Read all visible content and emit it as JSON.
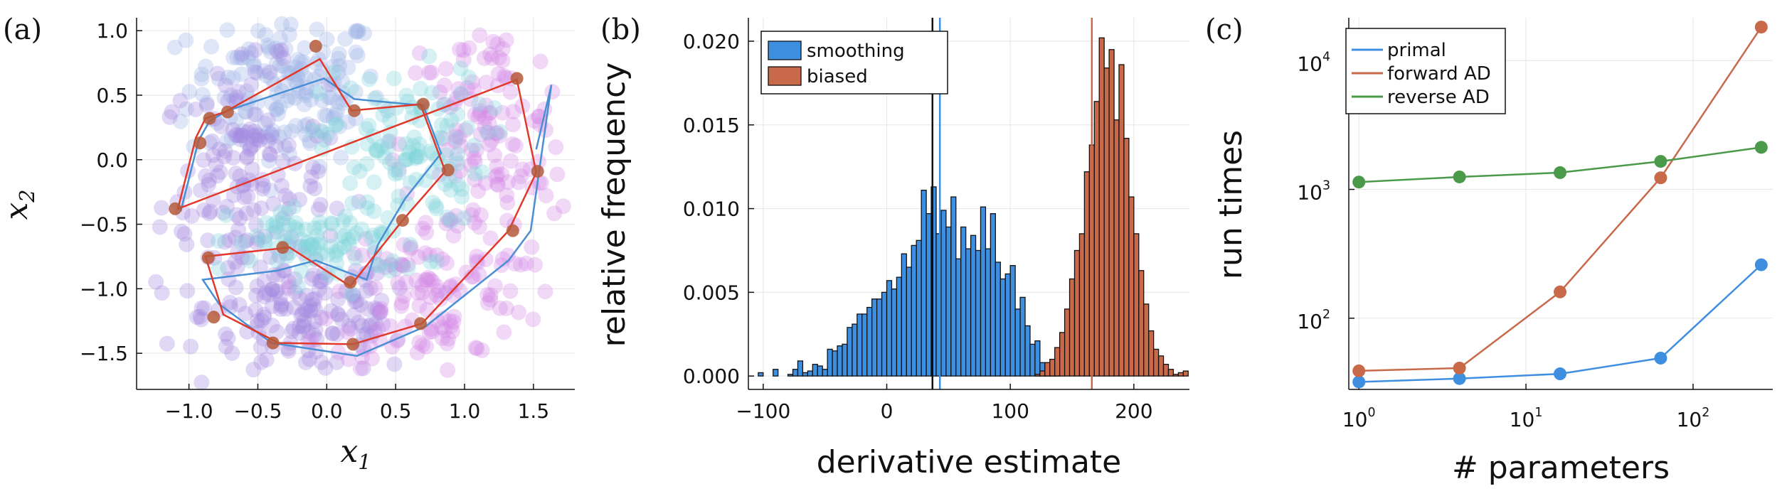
{
  "chart_data": [
    {
      "panel_label": "(a)",
      "type": "scatter",
      "xlabel": "x",
      "xlabel_sub": "1",
      "ylabel": "x",
      "ylabel_sub": "2",
      "xlim": [
        -1.38,
        1.8
      ],
      "ylim": [
        -1.78,
        1.1
      ],
      "xticks": [
        -1.0,
        -0.5,
        0.0,
        0.5,
        1.0,
        1.5
      ],
      "xtick_labels": [
        "−1.0",
        "−0.5",
        "0.0",
        "0.5",
        "1.0",
        "1.5"
      ],
      "yticks": [
        1.0,
        0.5,
        0.0,
        -0.5,
        -1.0,
        -1.5
      ],
      "ytick_labels": [
        "1.0",
        "0.5",
        "0.0",
        "−0.5",
        "−1.0",
        "−1.5"
      ],
      "grid": true,
      "colors": {
        "cloud_blue": "#9fb3e6",
        "cloud_purple": "#a58ae0",
        "cloud_magenta": "#d58ae6",
        "cloud_cyan": "#7fd3dc",
        "red_path": "#e0392b",
        "blue_path": "#4a8fd4",
        "markers": "#b5593a"
      },
      "red_path": [
        [
          -1.08,
          -0.38
        ],
        [
          -0.95,
          0.17
        ],
        [
          -0.88,
          0.32
        ],
        [
          -0.74,
          0.37
        ],
        [
          -0.05,
          0.78
        ],
        [
          0.18,
          0.38
        ],
        [
          0.68,
          0.43
        ],
        [
          0.86,
          -0.09
        ],
        [
          0.55,
          -0.47
        ],
        [
          0.17,
          -0.98
        ],
        [
          -0.27,
          -0.68
        ],
        [
          -0.88,
          -0.75
        ],
        [
          -0.75,
          -1.2
        ],
        [
          -0.35,
          -1.42
        ],
        [
          0.19,
          -1.43
        ],
        [
          0.69,
          -1.27
        ],
        [
          1.32,
          -0.55
        ],
        [
          1.52,
          -0.1
        ],
        [
          1.38,
          0.62
        ]
      ],
      "red_path_closed": true,
      "blue_path": [
        [
          -1.06,
          -0.4
        ],
        [
          -0.93,
          0.15
        ],
        [
          -0.85,
          0.3
        ],
        [
          -0.72,
          0.38
        ],
        [
          -0.02,
          0.63
        ],
        [
          0.2,
          0.47
        ],
        [
          0.7,
          0.42
        ],
        [
          0.83,
          0.05
        ],
        [
          0.57,
          -0.3
        ],
        [
          0.37,
          -0.66
        ],
        [
          0.29,
          -0.93
        ],
        [
          -0.08,
          -0.78
        ],
        [
          -0.36,
          -0.86
        ],
        [
          -0.9,
          -0.93
        ],
        [
          -0.78,
          -1.12
        ],
        [
          -0.4,
          -1.42
        ],
        [
          0.22,
          -1.52
        ],
        [
          0.72,
          -1.29
        ],
        [
          1.32,
          -0.78
        ],
        [
          1.48,
          -0.55
        ],
        [
          1.63,
          0.58
        ],
        [
          1.52,
          0.08
        ]
      ],
      "markers": [
        [
          -0.08,
          0.88
        ],
        [
          -0.85,
          0.32
        ],
        [
          -0.72,
          0.37
        ],
        [
          0.2,
          0.38
        ],
        [
          0.7,
          0.43
        ],
        [
          -0.92,
          0.13
        ],
        [
          0.88,
          -0.08
        ],
        [
          1.38,
          0.63
        ],
        [
          1.53,
          -0.09
        ],
        [
          -1.1,
          -0.38
        ],
        [
          0.55,
          -0.47
        ],
        [
          1.35,
          -0.55
        ],
        [
          -0.32,
          -0.68
        ],
        [
          0.17,
          -0.95
        ],
        [
          -0.86,
          -0.76
        ],
        [
          -0.82,
          -1.22
        ],
        [
          -0.39,
          -1.42
        ],
        [
          0.19,
          -1.43
        ],
        [
          0.68,
          -1.27
        ]
      ]
    },
    {
      "panel_label": "(b)",
      "type": "histogram",
      "xlabel": "derivative estimate",
      "ylabel": "relative frequency",
      "xlim": [
        -112,
        245
      ],
      "ylim": [
        -0.0008,
        0.0214
      ],
      "xticks": [
        -100,
        0,
        100,
        200
      ],
      "xtick_labels": [
        "−100",
        "0",
        "100",
        "200"
      ],
      "yticks": [
        0.0,
        0.005,
        0.01,
        0.015,
        0.02
      ],
      "ytick_labels": [
        "0.000",
        "0.005",
        "0.010",
        "0.015",
        "0.020"
      ],
      "grid": true,
      "legend_position": "top-left",
      "bin_width": 4,
      "series": [
        {
          "name": "smoothing",
          "color": "#3f8fe0",
          "bin_start": -104,
          "values": [
            0.0002,
            0,
            0,
            0.0004,
            0,
            0,
            0.0001,
            0.0004,
            0.0009,
            0.0002,
            0.0003,
            0.0007,
            0.0006,
            0.0004,
            0.0016,
            0.0015,
            0.0018,
            0.0019,
            0.0029,
            0.0031,
            0.0037,
            0.0037,
            0.0041,
            0.0046,
            0.0046,
            0.005,
            0.0057,
            0.0052,
            0.0059,
            0.0073,
            0.0065,
            0.0078,
            0.0081,
            0.0111,
            0.0097,
            0.0113,
            0.0085,
            0.0099,
            0.0089,
            0.0107,
            0.007,
            0.0089,
            0.0076,
            0.0084,
            0.0075,
            0.0101,
            0.0076,
            0.0097,
            0.0068,
            0.0058,
            0.0061,
            0.0066,
            0.004,
            0.0047,
            0.003,
            0.0019,
            0.0021,
            0.0008,
            0.0002,
            0.0002,
            0.0001
          ],
          "mean_line": 43
        },
        {
          "name": "biased",
          "color": "#c8694a",
          "bin_start": 120,
          "values": [
            0.0001,
            0.0003,
            0.0008,
            0.001,
            0.0017,
            0.0026,
            0.004,
            0.0058,
            0.0075,
            0.0085,
            0.0122,
            0.0138,
            0.0164,
            0.0202,
            0.0184,
            0.0195,
            0.0153,
            0.0186,
            0.0142,
            0.0107,
            0.0085,
            0.0063,
            0.0043,
            0.0027,
            0.0016,
            0.0012,
            0.0007,
            0.0004,
            0.0001,
            0.0002,
            0.0003
          ],
          "mean_line": 166
        }
      ],
      "true_value_line": 37
    },
    {
      "panel_label": "(c)",
      "type": "line",
      "xlabel": "# parameters",
      "ylabel": "run times",
      "x_scale": "log",
      "y_scale": "log",
      "xlim": [
        0.87,
        300
      ],
      "ylim": [
        28,
        21500
      ],
      "xtick_values": [
        1,
        10,
        100
      ],
      "xtick_labels": [
        [
          "10",
          "0"
        ],
        [
          "10",
          "1"
        ],
        [
          "10",
          "2"
        ]
      ],
      "ytick_values": [
        100,
        1000,
        10000
      ],
      "ytick_labels": [
        [
          "10",
          "2"
        ],
        [
          "10",
          "3"
        ],
        [
          "10",
          "4"
        ]
      ],
      "grid": true,
      "legend_position": "top-left",
      "x": [
        1,
        4,
        16,
        64,
        256
      ],
      "series": [
        {
          "name": "primal",
          "color": "#3f8fe0",
          "values": [
            32,
            34,
            37,
            49,
            260
          ]
        },
        {
          "name": "forward AD",
          "color": "#c8694a",
          "values": [
            39,
            41,
            160,
            1230,
            18200
          ]
        },
        {
          "name": "reverse AD",
          "color": "#4a9a4a",
          "values": [
            1140,
            1250,
            1350,
            1650,
            2120
          ]
        }
      ]
    }
  ]
}
